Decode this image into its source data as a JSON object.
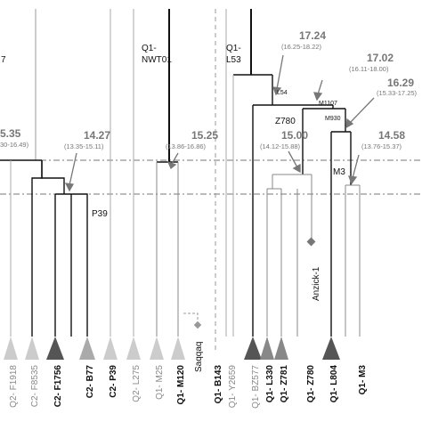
{
  "colors": {
    "black": "#111111",
    "mid_gray": "#777777",
    "light_gray": "#aaaaaa",
    "dark_triangle": "#555555",
    "light_triangle": "#bbbbbb",
    "dashdot": "#777777"
  },
  "edge_labels": {
    "left_top": "7",
    "left_age": "5.35",
    "left_ci": "30-16.49)"
  },
  "ages": [
    {
      "id": "a1427",
      "age": "14.27",
      "ci": "(13.35-15.11)"
    },
    {
      "id": "a1525",
      "age": "15.25",
      "ci": "(13.86-16.86)"
    },
    {
      "id": "a1724",
      "age": "17.24",
      "ci": "(16.25-18.22)"
    },
    {
      "id": "a1702",
      "age": "17.02",
      "ci": "(16.11-18.00)"
    },
    {
      "id": "a1629",
      "age": "16.29",
      "ci": "(15.33-17.25)"
    },
    {
      "id": "a1500",
      "age": "15.00",
      "ci": "(14.12-15.88)"
    },
    {
      "id": "a1458",
      "age": "14.58",
      "ci": "(13.76-15.37)"
    }
  ],
  "node_labels": {
    "q1_nwt01_line1": "Q1-",
    "q1_nwt01_line2": "NWT01",
    "q1_l53_line1": "Q1-",
    "q1_l53_line2": "L53",
    "l54": "L54",
    "m1107": "M1107",
    "z780": "Z780",
    "m930": "M930",
    "m3": "M3",
    "p39": "P39"
  },
  "ancient_labels": {
    "anzick": "Anzick-1",
    "saqqaq": "Saqqaq"
  },
  "leaves": [
    {
      "id": "f1918",
      "label": "Q2- F1918",
      "bold": false,
      "gray": true
    },
    {
      "id": "f8535",
      "label": "C2- F8535",
      "bold": false,
      "gray": true
    },
    {
      "id": "f1756",
      "label": "C2- F1756",
      "bold": true,
      "gray": false
    },
    {
      "id": "b77",
      "label": "C2- B77",
      "bold": true,
      "gray": false
    },
    {
      "id": "p39",
      "label": "C2- P39",
      "bold": true,
      "gray": false
    },
    {
      "id": "l275",
      "label": "Q2- L275",
      "bold": false,
      "gray": true
    },
    {
      "id": "m25",
      "label": "Q1- M25",
      "bold": false,
      "gray": true
    },
    {
      "id": "m120",
      "label": "Q1- M120",
      "bold": true,
      "gray": false
    },
    {
      "id": "b143",
      "label": "Q1- B143",
      "bold": true,
      "gray": false
    },
    {
      "id": "y2659",
      "label": "Q1- Y2659",
      "bold": false,
      "gray": true
    },
    {
      "id": "bz577",
      "label": "Q1- BZ577",
      "bold": false,
      "gray": true
    },
    {
      "id": "l330",
      "label": "Q1- L330",
      "bold": true,
      "gray": false
    },
    {
      "id": "z781",
      "label": "Q1- Z781",
      "bold": true,
      "gray": false
    },
    {
      "id": "z780",
      "label": "Q1- Z780",
      "bold": true,
      "gray": false
    },
    {
      "id": "l804",
      "label": "Q1- L804",
      "bold": true,
      "gray": false
    },
    {
      "id": "m3",
      "label": "Q1- M3",
      "bold": true,
      "gray": false
    }
  ]
}
